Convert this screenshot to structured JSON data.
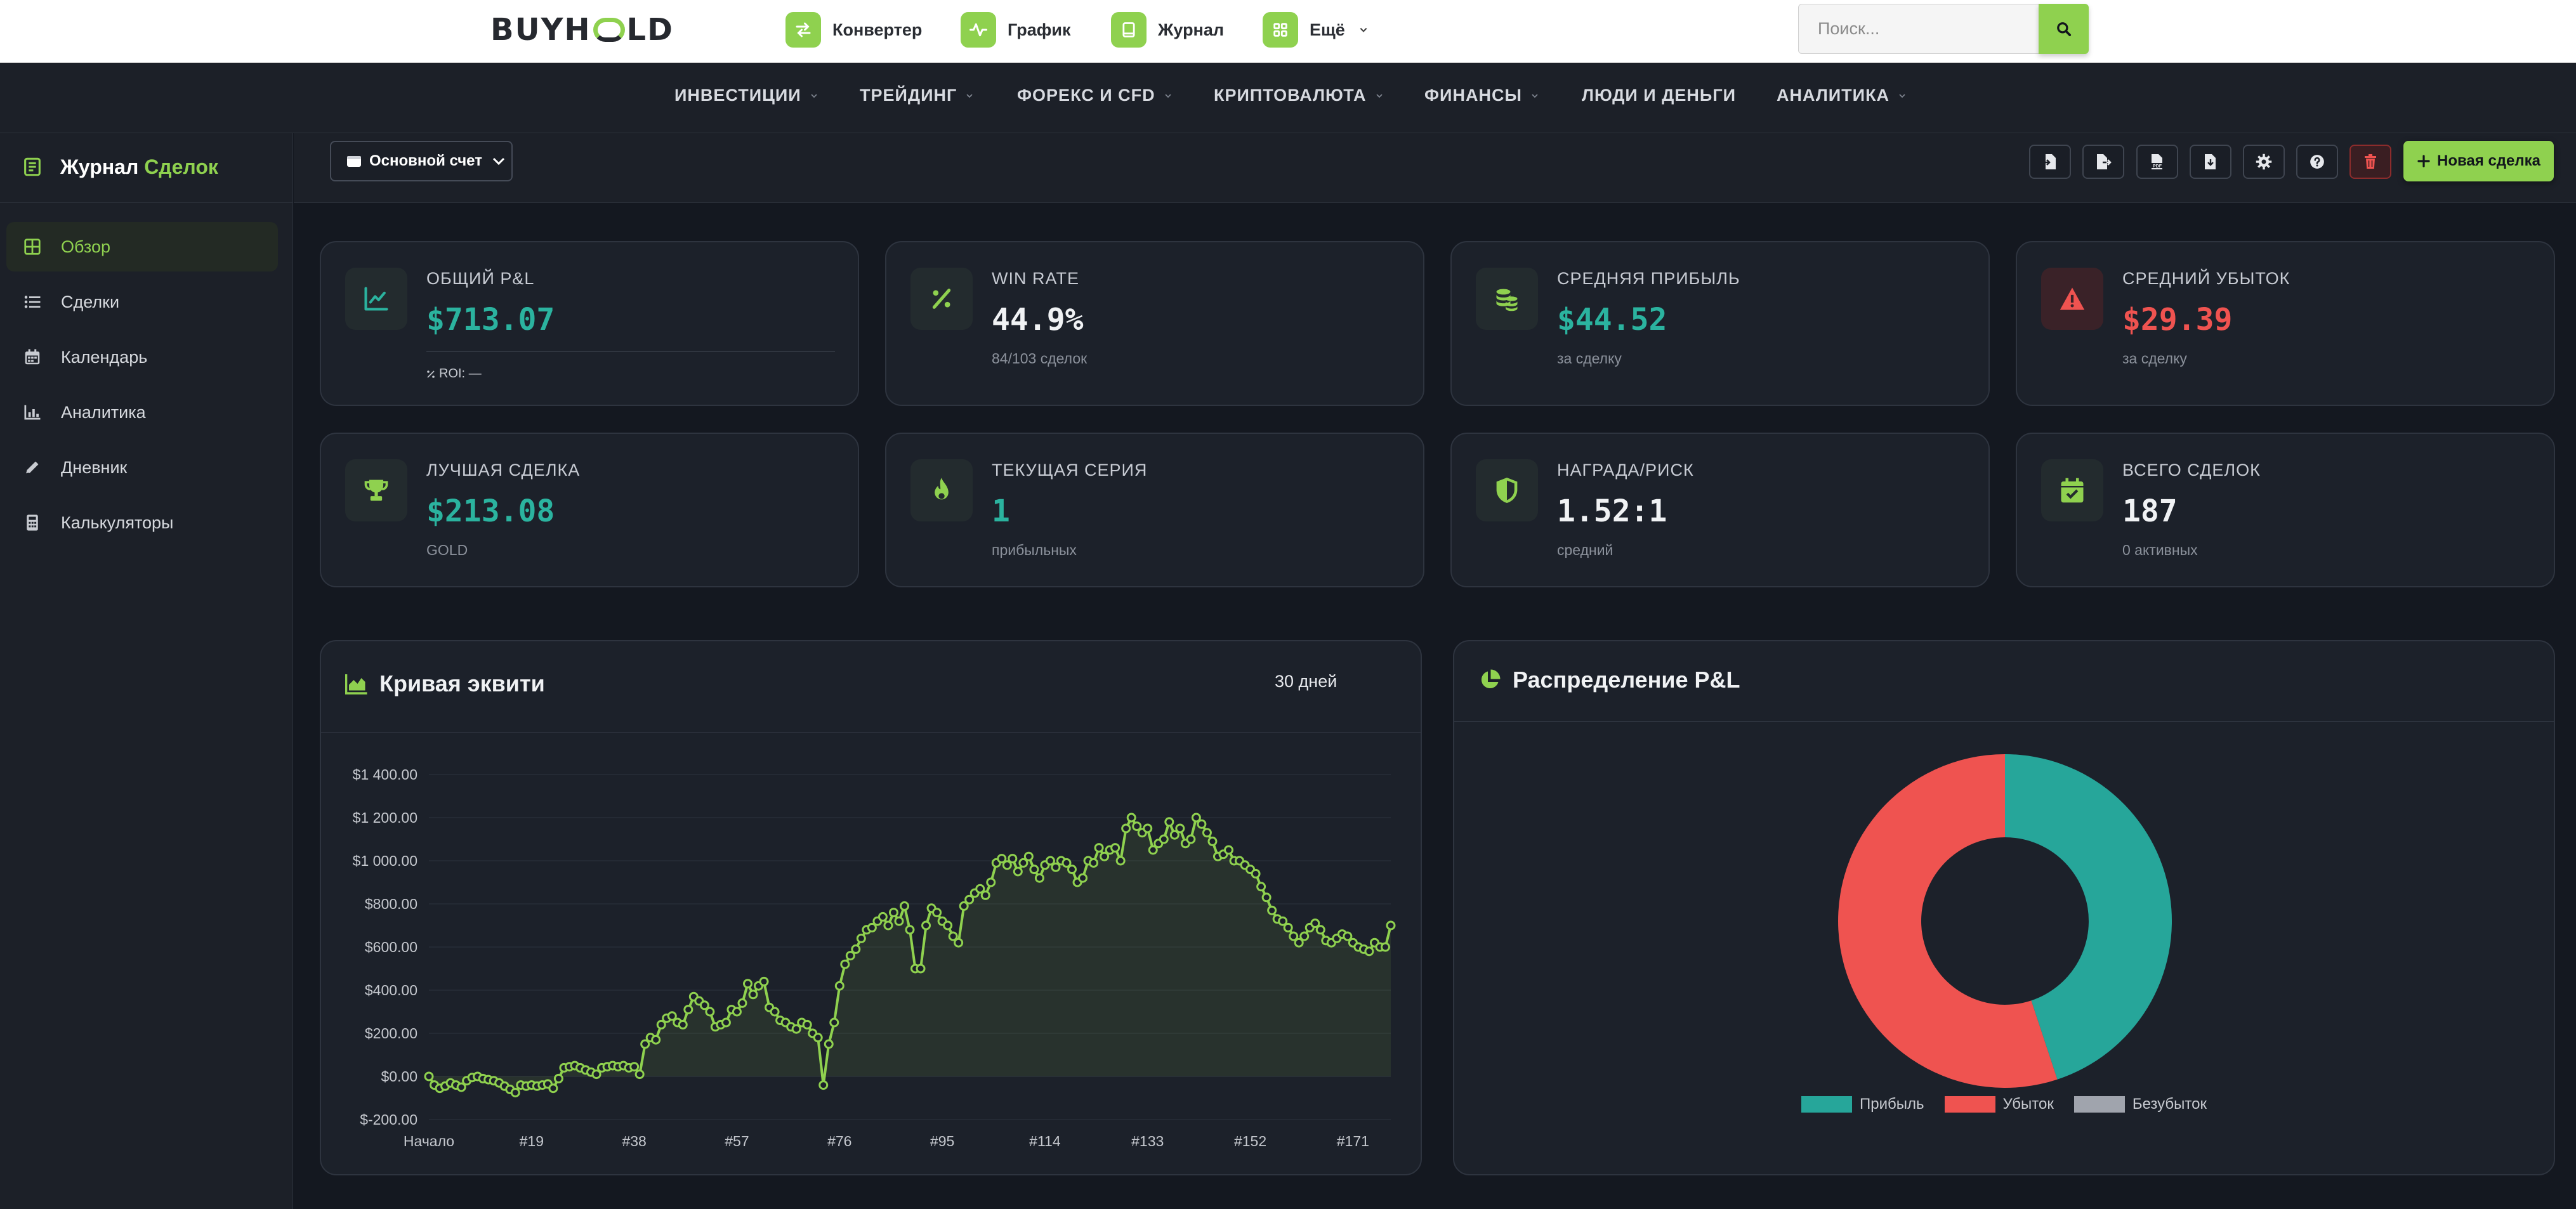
{
  "topbar": {
    "logo": {
      "part1": "BUYH",
      "part2": "LD"
    },
    "links": [
      {
        "label": "Конвертер"
      },
      {
        "label": "График"
      },
      {
        "label": "Журнал"
      },
      {
        "label": "Ещё"
      }
    ],
    "search": {
      "placeholder": "Поиск...",
      "value": ""
    }
  },
  "nav": {
    "items": [
      {
        "label": "ИНВЕСТИЦИИ",
        "dropdown": true
      },
      {
        "label": "ТРЕЙДИНГ",
        "dropdown": true
      },
      {
        "label": "ФОРЕКС И CFD",
        "dropdown": true
      },
      {
        "label": "КРИПТОВАЛЮТА",
        "dropdown": true
      },
      {
        "label": "ФИНАНСЫ",
        "dropdown": true
      },
      {
        "label": "ЛЮДИ И ДЕНЬГИ",
        "dropdown": false
      },
      {
        "label": "АНАЛИТИКА",
        "dropdown": true
      }
    ]
  },
  "sidebar": {
    "title_part1": "Журнал",
    "title_part2": "Сделок",
    "items": [
      {
        "label": "Обзор",
        "icon": "grid-icon",
        "active": true
      },
      {
        "label": "Сделки",
        "icon": "list-icon",
        "active": false
      },
      {
        "label": "Календарь",
        "icon": "calendar-icon",
        "active": false
      },
      {
        "label": "Аналитика",
        "icon": "chart-bar-icon",
        "active": false
      },
      {
        "label": "Дневник",
        "icon": "pencil-icon",
        "active": false
      },
      {
        "label": "Калькуляторы",
        "icon": "calculator-icon",
        "active": false
      }
    ]
  },
  "toolbar": {
    "account": "Основной счет",
    "buttons": [
      "import-file-icon",
      "export-file-icon",
      "pdf-file-icon",
      "csv-file-icon",
      "gear-icon",
      "help-icon",
      "trash-icon"
    ],
    "new_trade": "Новая сделка"
  },
  "stats": {
    "total_pnl": {
      "label": "ОБЩИЙ P&L",
      "value": "$713.07",
      "roi_label": "ROI:",
      "roi_value": "—",
      "icon": "chart-line-icon"
    },
    "win_rate": {
      "label": "WIN RATE",
      "value": "44.9%",
      "sub": "84/103 сделок",
      "icon": "percent-icon"
    },
    "avg_profit": {
      "label": "СРЕДНЯЯ ПРИБЫЛЬ",
      "value": "$44.52",
      "sub": "за сделку",
      "icon": "coins-icon"
    },
    "avg_loss": {
      "label": "СРЕДНИЙ УБЫТОК",
      "value": "$29.39",
      "sub": "за сделку",
      "icon": "warning-icon"
    },
    "best_trade": {
      "label": "ЛУЧШАЯ СДЕЛКА",
      "value": "$213.08",
      "sub": "GOLD",
      "icon": "trophy-icon"
    },
    "streak": {
      "label": "ТЕКУЩАЯ СЕРИЯ",
      "value": "1",
      "sub": "прибыльных",
      "icon": "fire-icon"
    },
    "reward_risk": {
      "label": "НАГРАДА/РИСК",
      "value": "1.52:1",
      "sub": "средний",
      "icon": "shield-icon"
    },
    "total_trades": {
      "label": "ВСЕГО СДЕЛОК",
      "value": "187",
      "sub": "0 активных",
      "icon": "calendar-check-icon"
    }
  },
  "equity": {
    "title": "Кривая эквити",
    "range": "30 дней"
  },
  "distribution": {
    "title": "Распределение P&L"
  },
  "chart_data": [
    {
      "type": "line",
      "title": "Кривая эквити",
      "y_ticks": [
        "$1 400.00",
        "$1 200.00",
        "$1 000.00",
        "$800.00",
        "$600.00",
        "$400.00",
        "$200.00",
        "$0.00",
        "$-200.00"
      ],
      "ylim": [
        -200,
        1400
      ],
      "x_tick_labels": [
        "Начало",
        "#19",
        "#38",
        "#57",
        "#76",
        "#95",
        "#114",
        "#133",
        "#152",
        "#171"
      ],
      "x_tick_index": [
        0,
        19,
        38,
        57,
        76,
        95,
        114,
        133,
        152,
        171
      ],
      "grid": true,
      "color": "#8fd14f",
      "values": [
        0,
        -40,
        -55,
        -45,
        -30,
        -40,
        -50,
        -20,
        -5,
        0,
        -10,
        -15,
        -20,
        -30,
        -45,
        -60,
        -75,
        -40,
        -45,
        -40,
        -45,
        -40,
        -35,
        -55,
        -10,
        40,
        45,
        50,
        40,
        30,
        20,
        10,
        40,
        45,
        50,
        45,
        50,
        40,
        45,
        10,
        150,
        180,
        170,
        240,
        270,
        280,
        250,
        240,
        310,
        370,
        350,
        330,
        300,
        230,
        240,
        250,
        310,
        300,
        340,
        430,
        380,
        420,
        440,
        320,
        300,
        260,
        250,
        230,
        220,
        250,
        240,
        200,
        180,
        -40,
        150,
        250,
        420,
        520,
        560,
        590,
        640,
        680,
        690,
        720,
        740,
        700,
        760,
        720,
        790,
        680,
        500,
        500,
        700,
        780,
        760,
        720,
        700,
        650,
        620,
        790,
        820,
        850,
        870,
        840,
        900,
        990,
        1010,
        980,
        1010,
        950,
        990,
        1020,
        960,
        920,
        980,
        1000,
        970,
        1000,
        990,
        960,
        900,
        920,
        1000,
        990,
        1060,
        1020,
        1050,
        1060,
        1000,
        1150,
        1200,
        1160,
        1130,
        1150,
        1050,
        1080,
        1100,
        1180,
        1120,
        1150,
        1080,
        1100,
        1200,
        1170,
        1130,
        1090,
        1020,
        1030,
        1050,
        1000,
        1000,
        980,
        960,
        940,
        880,
        830,
        770,
        730,
        720,
        690,
        650,
        620,
        650,
        690,
        710,
        680,
        630,
        620,
        640,
        660,
        650,
        620,
        600,
        590,
        580,
        620,
        600,
        600,
        700
      ]
    },
    {
      "type": "pie",
      "title": "Распределение P&L",
      "donut": true,
      "legend_position": "bottom",
      "slices": [
        {
          "name": "Прибыль",
          "value": 84,
          "color": "#26a69a"
        },
        {
          "name": "Убыток",
          "value": 103,
          "color": "#ef5350"
        },
        {
          "name": "Безубыток",
          "value": 0,
          "color": "#a0a4ad"
        }
      ]
    }
  ]
}
